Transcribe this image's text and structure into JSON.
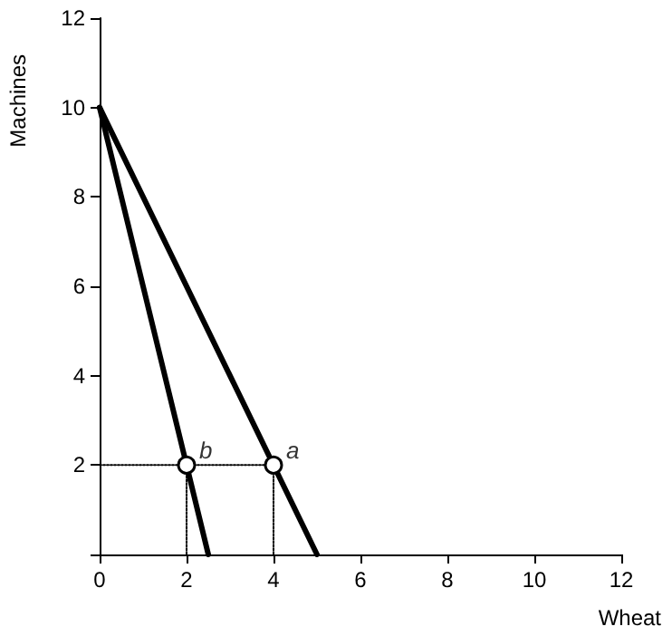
{
  "chart_data": {
    "type": "line",
    "xlabel": "Wheat",
    "ylabel": "Machines",
    "xlim": [
      0,
      12
    ],
    "xticks": [
      0,
      2,
      4,
      6,
      8,
      10,
      12
    ],
    "ylim": [
      0,
      12
    ],
    "yticks": [
      {
        "value": 0,
        "label": null
      },
      2,
      4,
      6,
      8,
      10,
      12
    ],
    "grid": false,
    "marker": "none",
    "line_style": "solid",
    "series": [
      {
        "color": "#000000",
        "x": [
          0,
          5
        ],
        "values": [
          10,
          0
        ]
      },
      {
        "color": "#000000",
        "x": [
          0,
          2.5
        ],
        "values": [
          10,
          0
        ]
      },
      {
        "color": "#000000",
        "line_style": "dotted",
        "x": [
          0,
          4,
          4
        ],
        "values": [
          2,
          2,
          0
        ]
      },
      {
        "color": "#000000",
        "line_style": "dotted",
        "x": [
          2,
          2
        ],
        "values": [
          2,
          0
        ]
      },
      {
        "type": "scatter",
        "color": "#000000",
        "marker": "circle",
        "x": [
          2,
          4
        ],
        "values": [
          2,
          2
        ]
      }
    ],
    "annotations": [
      {
        "text": "b",
        "x": 2,
        "y": 2
      },
      {
        "text": "a",
        "x": 4,
        "y": 2
      }
    ]
  }
}
